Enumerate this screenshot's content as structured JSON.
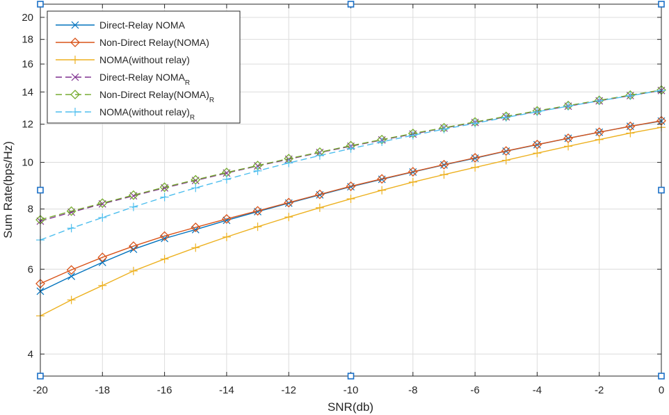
{
  "chart_data": {
    "type": "line",
    "title": "",
    "xlabel": "SNR(db)",
    "ylabel": "Sum Rate(bps/Hz)",
    "xlim": [
      -20,
      0
    ],
    "ylim": [
      3.6,
      21.3
    ],
    "yscale": "log",
    "grid": true,
    "legend_position": "top-left",
    "xticks": [
      -20,
      -18,
      -16,
      -14,
      -12,
      -10,
      -8,
      -6,
      -4,
      -2,
      0
    ],
    "xtick_labels": [
      "-20",
      "-18",
      "-16",
      "-14",
      "-12",
      "-10",
      "-8",
      "-6",
      "-4",
      "-2",
      "0"
    ],
    "yticks": [
      4,
      6,
      8,
      10,
      12,
      14,
      16,
      18,
      20
    ],
    "ytick_labels": [
      "4",
      "6",
      "8",
      "10",
      "12",
      "14",
      "16",
      "18",
      "20"
    ],
    "x": [
      -20,
      -19,
      -18,
      -17,
      -16,
      -15,
      -14,
      -13,
      -12,
      -11,
      -10,
      -9,
      -8,
      -7,
      -6,
      -5,
      -4,
      -3,
      -2,
      -1,
      0
    ],
    "series": [
      {
        "name": "Direct-Relay NOMA",
        "subscript": "",
        "color": "#0072BD",
        "dashed": false,
        "marker": "x",
        "values": [
          5.4,
          5.8,
          6.2,
          6.6,
          6.95,
          7.25,
          7.58,
          7.9,
          8.23,
          8.56,
          8.9,
          9.22,
          9.55,
          9.88,
          10.2,
          10.55,
          10.88,
          11.22,
          11.55,
          11.88,
          12.18
        ]
      },
      {
        "name": "Non-Direct Relay(NOMA)",
        "subscript": "",
        "color": "#D95319",
        "dashed": false,
        "marker": "diamond",
        "values": [
          5.6,
          5.98,
          6.35,
          6.7,
          7.03,
          7.33,
          7.63,
          7.93,
          8.25,
          8.58,
          8.92,
          9.24,
          9.56,
          9.89,
          10.22,
          10.56,
          10.89,
          11.22,
          11.55,
          11.88,
          12.2
        ]
      },
      {
        "name": "NOMA(without relay)",
        "subscript": "",
        "color": "#EDB120",
        "dashed": false,
        "marker": "plus",
        "values": [
          4.8,
          5.18,
          5.55,
          5.95,
          6.3,
          6.65,
          7.0,
          7.35,
          7.7,
          8.05,
          8.4,
          8.75,
          9.1,
          9.43,
          9.76,
          10.1,
          10.45,
          10.8,
          11.15,
          11.5,
          11.82
        ]
      },
      {
        "name": "Direct-Relay NOMA",
        "subscript": "R",
        "color": "#7E2F8E",
        "dashed": true,
        "marker": "x",
        "values": [
          7.55,
          7.88,
          8.2,
          8.52,
          8.85,
          9.17,
          9.5,
          9.83,
          10.15,
          10.48,
          10.8,
          11.13,
          11.45,
          11.78,
          12.1,
          12.43,
          12.76,
          13.08,
          13.42,
          13.76,
          14.1
        ]
      },
      {
        "name": "Non-Direct Relay(NOMA)",
        "subscript": "R",
        "color": "#77AC30",
        "dashed": true,
        "marker": "diamond",
        "values": [
          7.6,
          7.92,
          8.23,
          8.55,
          8.88,
          9.2,
          9.53,
          9.85,
          10.18,
          10.5,
          10.83,
          11.15,
          11.48,
          11.8,
          12.13,
          12.46,
          12.79,
          13.12,
          13.45,
          13.79,
          14.13
        ]
      },
      {
        "name": "NOMA(without relay)",
        "subscript": "R",
        "color": "#4DBEEE",
        "dashed": true,
        "marker": "plus",
        "values": [
          6.9,
          7.3,
          7.68,
          8.08,
          8.47,
          8.85,
          9.22,
          9.6,
          9.97,
          10.33,
          10.68,
          11.03,
          11.38,
          11.72,
          12.05,
          12.4,
          12.73,
          13.08,
          13.42,
          13.75,
          14.1
        ]
      }
    ]
  }
}
